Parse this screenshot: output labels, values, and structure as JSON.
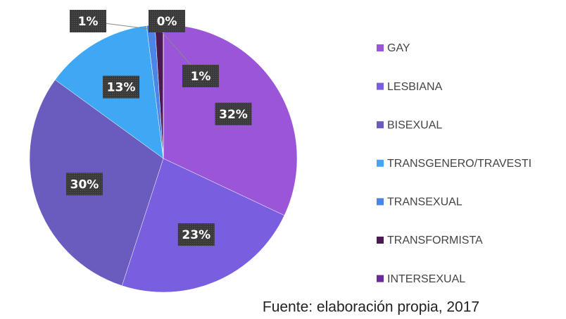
{
  "chart_data": {
    "type": "pie",
    "categories": [
      "GAY",
      "LESBIANA",
      "BISEXUAL",
      "TRANSGENERO/TRAVESTI",
      "TRANSEXUAL",
      "TRANSFORMISTA",
      "INTERSEXUAL"
    ],
    "values": [
      32,
      23,
      30,
      13,
      1,
      1,
      0
    ],
    "value_labels": [
      "32%",
      "23%",
      "30%",
      "13%",
      "1%",
      "1%",
      "0%"
    ],
    "colors": [
      "#9b55d8",
      "#7a5ee0",
      "#6a5cbf",
      "#3ea8f4",
      "#4a86e8",
      "#4a1a50",
      "#6b2a9c"
    ],
    "legend": "right",
    "source": "Fuente: elaboración propia, 2017"
  }
}
